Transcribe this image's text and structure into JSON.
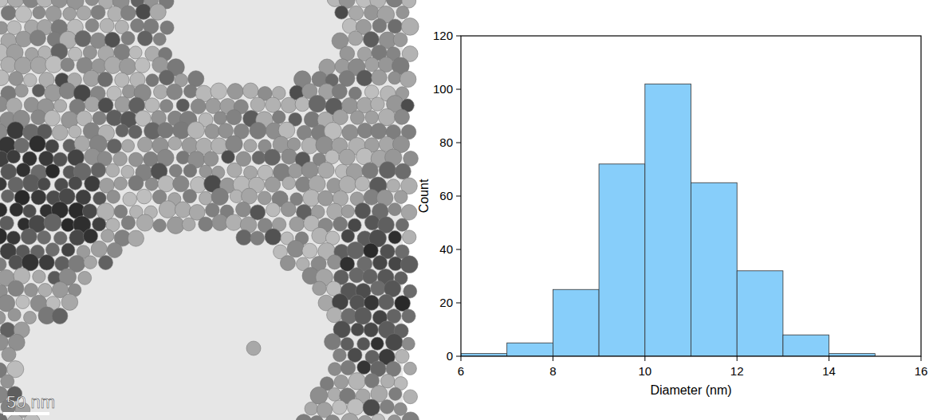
{
  "chart_data": {
    "type": "histogram",
    "x_label": "Diameter (nm)",
    "y_label": "Count",
    "bins": [
      6,
      7,
      8,
      9,
      10,
      11,
      12,
      13,
      14,
      15
    ],
    "values": [
      1,
      5,
      25,
      72,
      102,
      65,
      32,
      8,
      1
    ],
    "color": "#87cefa",
    "xlim": [
      6,
      16
    ],
    "xticks": [
      6,
      8,
      10,
      12,
      14,
      16
    ],
    "ylim": [
      0,
      120
    ],
    "yticks": [
      0,
      20,
      40,
      60,
      80,
      100,
      120
    ],
    "grid": false
  },
  "micrograph": {
    "scale_bar_label": "50 nm"
  }
}
